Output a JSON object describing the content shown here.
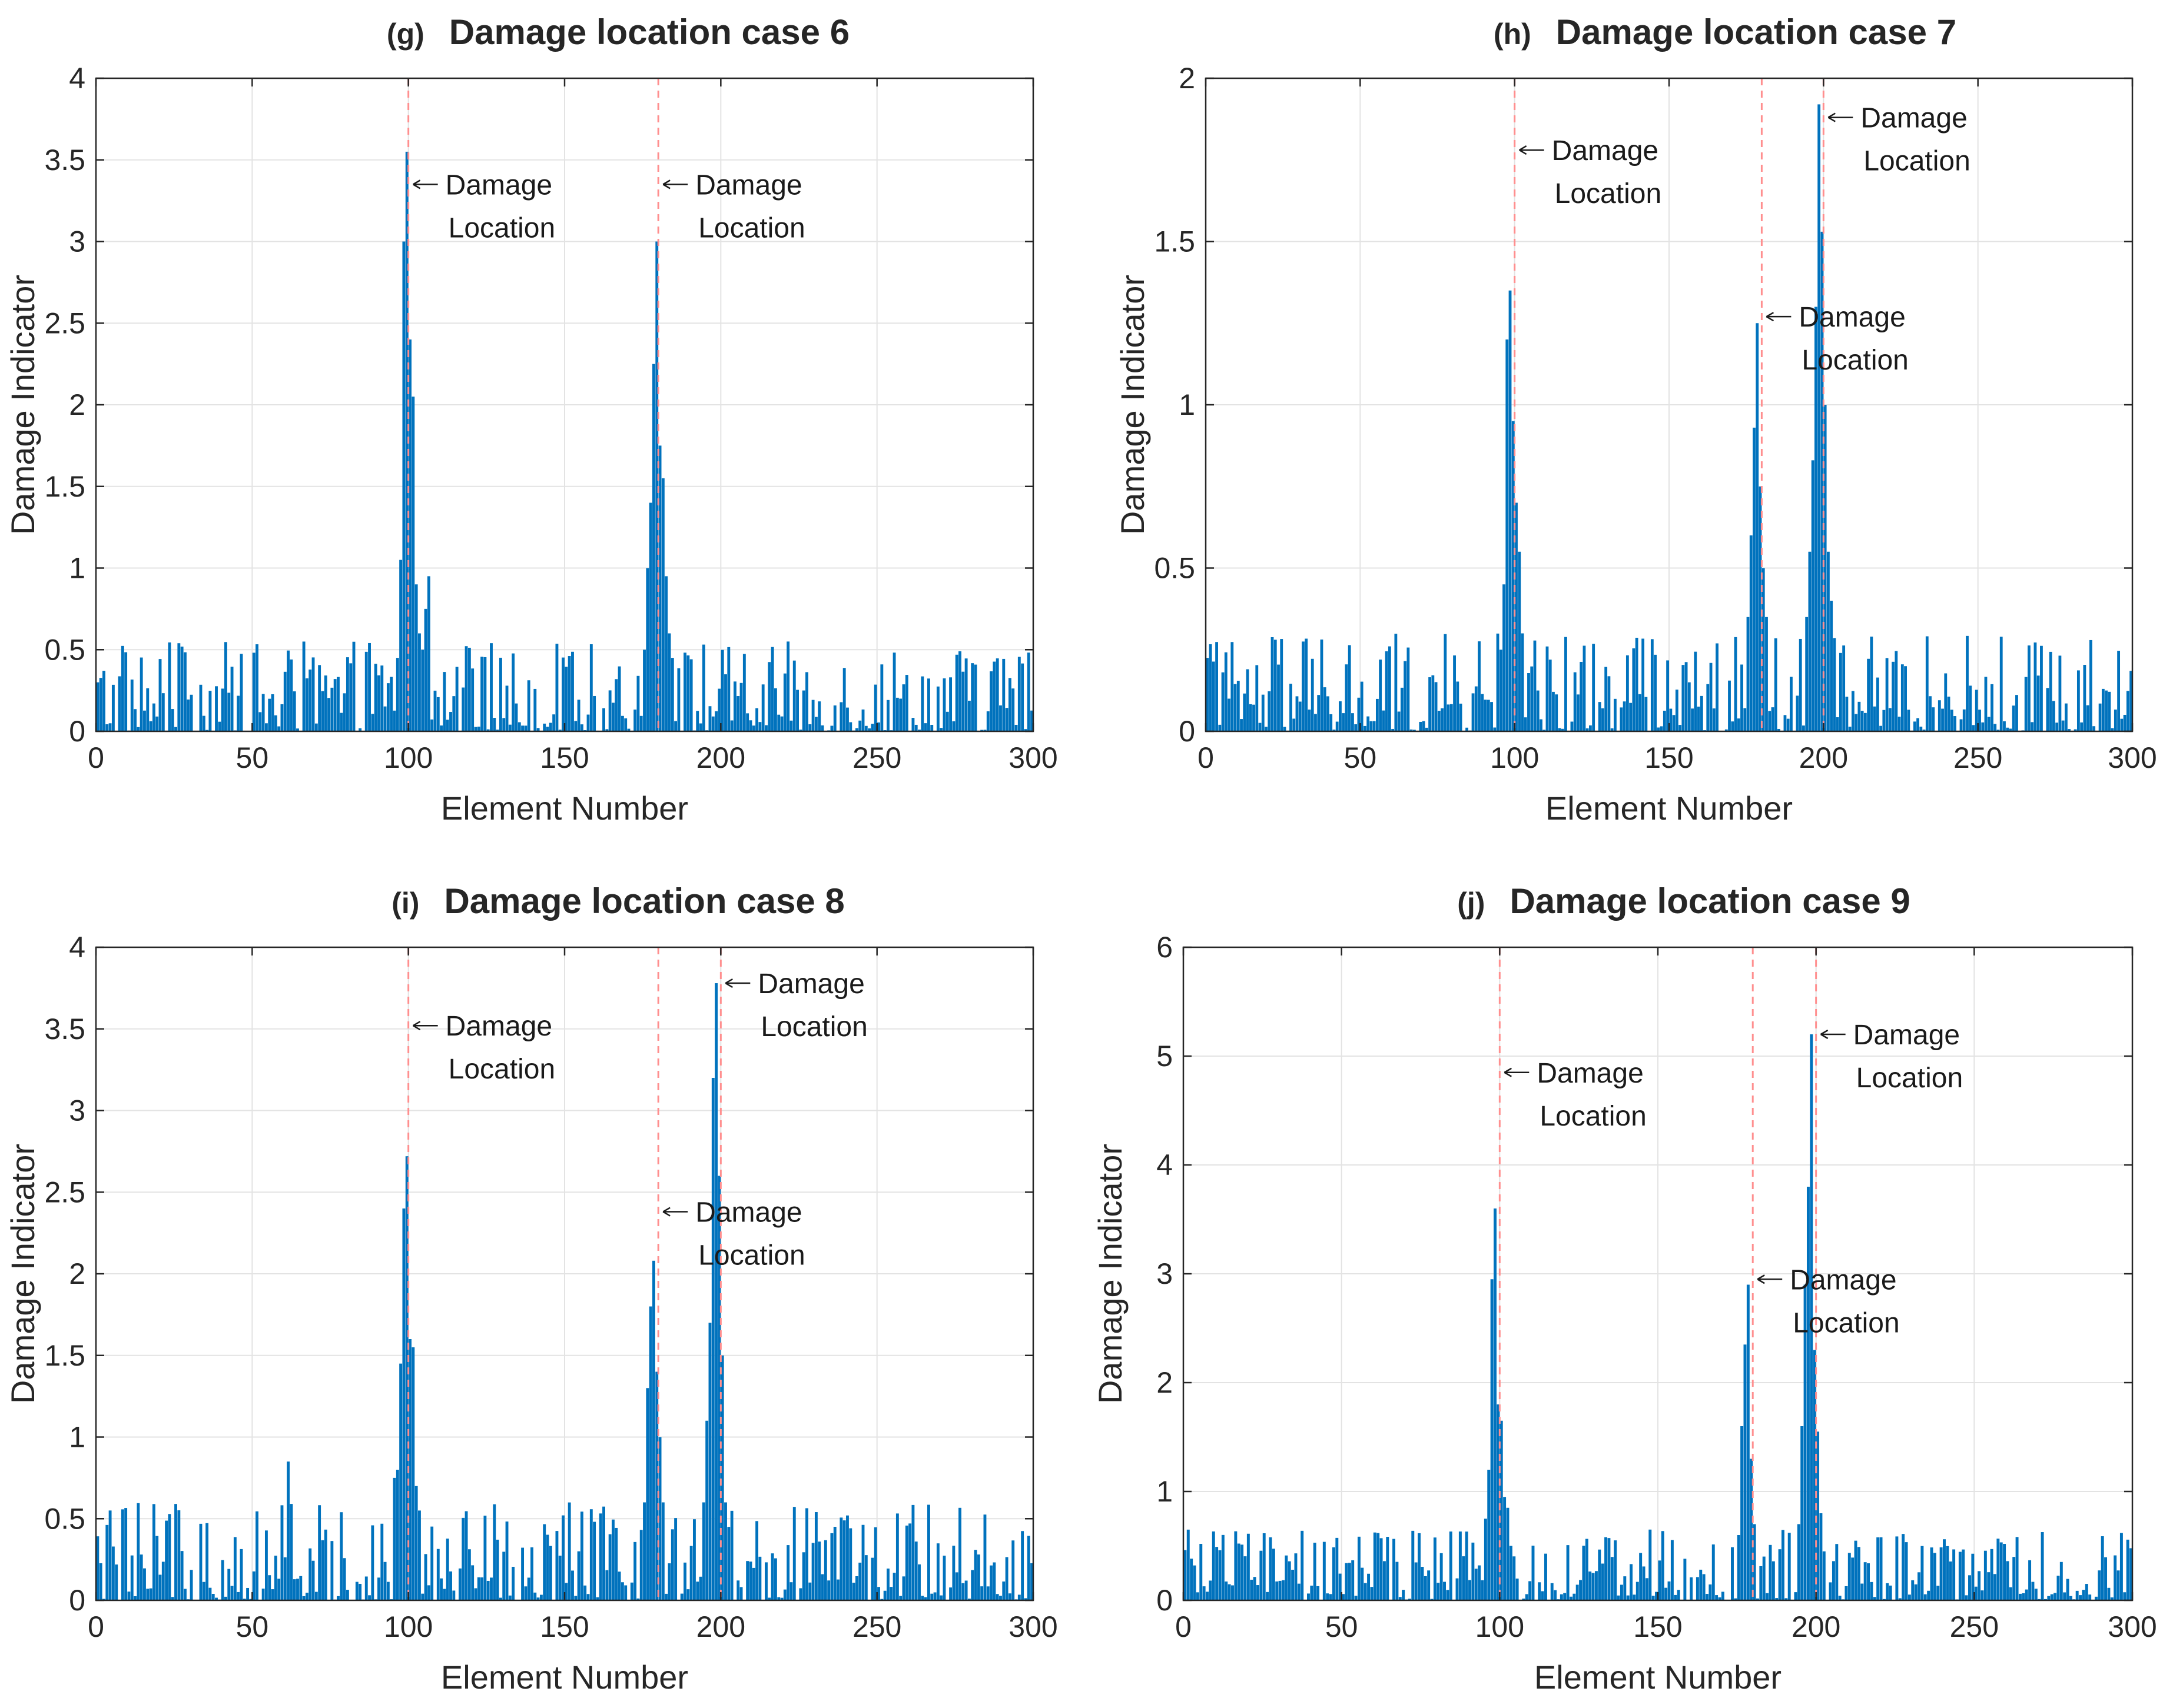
{
  "colors": {
    "bars": "#0072BD",
    "damage_marker_line": "#ff8f8f",
    "axes": "#262626",
    "grid": "#e3e3e3"
  },
  "chart_data": [
    {
      "type": "bar",
      "panel": "(g)",
      "title": "Damage location case 6",
      "xlabel": "Element Number",
      "ylabel": "Damage Indicator",
      "xlim": [
        0,
        300
      ],
      "ylim": [
        0,
        4
      ],
      "xticks": [
        "0",
        "50",
        "100",
        "150",
        "200",
        "250",
        "300"
      ],
      "yticks": [
        "0",
        "0.5",
        "1",
        "1.5",
        "2",
        "2.5",
        "3",
        "3.5",
        "4"
      ],
      "grid": true,
      "x": "elements 1-300",
      "baseline_noise_max": 0.55,
      "damage_locations": [
        100,
        180
      ],
      "peaks": [
        {
          "x": 97,
          "y": 0.45
        },
        {
          "x": 98,
          "y": 1.05
        },
        {
          "x": 99,
          "y": 3.0
        },
        {
          "x": 100,
          "y": 3.55
        },
        {
          "x": 101,
          "y": 2.4
        },
        {
          "x": 102,
          "y": 2.05
        },
        {
          "x": 103,
          "y": 0.9
        },
        {
          "x": 104,
          "y": 0.6
        },
        {
          "x": 105,
          "y": 0.5
        },
        {
          "x": 106,
          "y": 0.75
        },
        {
          "x": 107,
          "y": 0.95
        },
        {
          "x": 176,
          "y": 0.5
        },
        {
          "x": 177,
          "y": 1.0
        },
        {
          "x": 178,
          "y": 1.4
        },
        {
          "x": 179,
          "y": 2.25
        },
        {
          "x": 180,
          "y": 3.0
        },
        {
          "x": 181,
          "y": 1.75
        },
        {
          "x": 182,
          "y": 1.55
        },
        {
          "x": 183,
          "y": 0.95
        },
        {
          "x": 184,
          "y": 0.6
        },
        {
          "x": 185,
          "y": 0.45
        }
      ],
      "annotations": [
        {
          "text": [
            "Damage",
            "Location"
          ],
          "x": 100,
          "y": 3.35
        },
        {
          "text": [
            "Damage",
            "Location"
          ],
          "x": 180,
          "y": 3.35
        }
      ]
    },
    {
      "type": "bar",
      "panel": "(h)",
      "title": "Damage location case 7",
      "xlabel": "Element Number",
      "ylabel": "Damage Indicator",
      "xlim": [
        0,
        300
      ],
      "ylim": [
        0,
        2
      ],
      "xticks": [
        "0",
        "50",
        "100",
        "150",
        "200",
        "250",
        "300"
      ],
      "yticks": [
        "0",
        "0.5",
        "1",
        "1.5",
        "2"
      ],
      "grid": true,
      "x": "elements 1-300",
      "baseline_noise_max": 0.3,
      "damage_locations": [
        100,
        180,
        200
      ],
      "peaks": [
        {
          "x": 96,
          "y": 0.25
        },
        {
          "x": 97,
          "y": 0.45
        },
        {
          "x": 98,
          "y": 1.2
        },
        {
          "x": 99,
          "y": 1.35
        },
        {
          "x": 100,
          "y": 0.95
        },
        {
          "x": 101,
          "y": 0.7
        },
        {
          "x": 102,
          "y": 0.55
        },
        {
          "x": 103,
          "y": 0.3
        },
        {
          "x": 176,
          "y": 0.35
        },
        {
          "x": 177,
          "y": 0.6
        },
        {
          "x": 178,
          "y": 0.93
        },
        {
          "x": 179,
          "y": 1.25
        },
        {
          "x": 180,
          "y": 0.75
        },
        {
          "x": 181,
          "y": 0.5
        },
        {
          "x": 182,
          "y": 0.35
        },
        {
          "x": 195,
          "y": 0.35
        },
        {
          "x": 196,
          "y": 0.55
        },
        {
          "x": 197,
          "y": 0.83
        },
        {
          "x": 198,
          "y": 1.3
        },
        {
          "x": 199,
          "y": 1.92
        },
        {
          "x": 200,
          "y": 1.53
        },
        {
          "x": 201,
          "y": 1.0
        },
        {
          "x": 202,
          "y": 0.55
        },
        {
          "x": 203,
          "y": 0.4
        }
      ],
      "annotations": [
        {
          "text": [
            "Damage",
            "Location"
          ],
          "x": 100,
          "y": 1.78
        },
        {
          "text": [
            "Damage",
            "Location"
          ],
          "x": 180,
          "y": 1.27
        },
        {
          "text": [
            "Damage",
            "Location"
          ],
          "x": 200,
          "y": 1.88
        }
      ]
    },
    {
      "type": "bar",
      "panel": "(i)",
      "title": "Damage location case 8",
      "xlabel": "Element Number",
      "ylabel": "Damage Indicator",
      "xlim": [
        0,
        300
      ],
      "ylim": [
        0,
        4
      ],
      "xticks": [
        "0",
        "50",
        "100",
        "150",
        "200",
        "250",
        "300"
      ],
      "yticks": [
        "0",
        "0.5",
        "1",
        "1.5",
        "2",
        "2.5",
        "3",
        "3.5",
        "4"
      ],
      "grid": true,
      "x": "elements 1-300",
      "baseline_noise_max": 0.6,
      "damage_locations": [
        100,
        180,
        200
      ],
      "peaks": [
        {
          "x": 62,
          "y": 0.85
        },
        {
          "x": 96,
          "y": 0.75
        },
        {
          "x": 97,
          "y": 0.8
        },
        {
          "x": 98,
          "y": 1.45
        },
        {
          "x": 99,
          "y": 2.4
        },
        {
          "x": 100,
          "y": 2.72
        },
        {
          "x": 101,
          "y": 1.6
        },
        {
          "x": 102,
          "y": 1.55
        },
        {
          "x": 103,
          "y": 0.7
        },
        {
          "x": 104,
          "y": 0.55
        },
        {
          "x": 176,
          "y": 0.6
        },
        {
          "x": 177,
          "y": 1.3
        },
        {
          "x": 178,
          "y": 1.8
        },
        {
          "x": 179,
          "y": 2.08
        },
        {
          "x": 180,
          "y": 1.4
        },
        {
          "x": 181,
          "y": 1.0
        },
        {
          "x": 182,
          "y": 0.6
        },
        {
          "x": 195,
          "y": 0.6
        },
        {
          "x": 196,
          "y": 1.1
        },
        {
          "x": 197,
          "y": 1.7
        },
        {
          "x": 198,
          "y": 3.2
        },
        {
          "x": 199,
          "y": 3.78
        },
        {
          "x": 200,
          "y": 2.6
        },
        {
          "x": 201,
          "y": 1.5
        },
        {
          "x": 202,
          "y": 0.6
        },
        {
          "x": 203,
          "y": 0.45
        }
      ],
      "annotations": [
        {
          "text": [
            "Damage",
            "Location"
          ],
          "x": 100,
          "y": 3.52
        },
        {
          "text": [
            "Damage",
            "Location"
          ],
          "x": 180,
          "y": 2.38
        },
        {
          "text": [
            "Damage",
            "Location"
          ],
          "x": 200,
          "y": 3.78
        }
      ]
    },
    {
      "type": "bar",
      "panel": "(j)",
      "title": "Damage location case 9",
      "xlabel": "Element Number",
      "ylabel": "Damage Indicator",
      "xlim": [
        0,
        300
      ],
      "ylim": [
        0,
        6
      ],
      "xticks": [
        "0",
        "50",
        "100",
        "150",
        "200",
        "250",
        "300"
      ],
      "yticks": [
        "0",
        "1",
        "2",
        "3",
        "4",
        "5",
        "6"
      ],
      "grid": true,
      "x": "elements 1-300",
      "baseline_noise_max": 0.65,
      "damage_locations": [
        100,
        180,
        200
      ],
      "peaks": [
        {
          "x": 96,
          "y": 0.75
        },
        {
          "x": 97,
          "y": 1.2
        },
        {
          "x": 98,
          "y": 2.95
        },
        {
          "x": 99,
          "y": 3.6
        },
        {
          "x": 100,
          "y": 1.8
        },
        {
          "x": 101,
          "y": 1.65
        },
        {
          "x": 102,
          "y": 0.95
        },
        {
          "x": 103,
          "y": 0.85
        },
        {
          "x": 104,
          "y": 0.5
        },
        {
          "x": 176,
          "y": 0.6
        },
        {
          "x": 177,
          "y": 1.6
        },
        {
          "x": 178,
          "y": 2.35
        },
        {
          "x": 179,
          "y": 2.9
        },
        {
          "x": 180,
          "y": 1.3
        },
        {
          "x": 181,
          "y": 0.7
        },
        {
          "x": 195,
          "y": 0.7
        },
        {
          "x": 196,
          "y": 1.6
        },
        {
          "x": 197,
          "y": 2.9
        },
        {
          "x": 198,
          "y": 3.8
        },
        {
          "x": 199,
          "y": 5.2
        },
        {
          "x": 200,
          "y": 2.3
        },
        {
          "x": 201,
          "y": 1.55
        },
        {
          "x": 202,
          "y": 0.8
        },
        {
          "x": 203,
          "y": 0.45
        }
      ],
      "annotations": [
        {
          "text": [
            "Damage",
            "Location"
          ],
          "x": 100,
          "y": 4.85
        },
        {
          "text": [
            "Damage",
            "Location"
          ],
          "x": 180,
          "y": 2.95
        },
        {
          "text": [
            "Damage",
            "Location"
          ],
          "x": 200,
          "y": 5.2
        }
      ]
    }
  ]
}
